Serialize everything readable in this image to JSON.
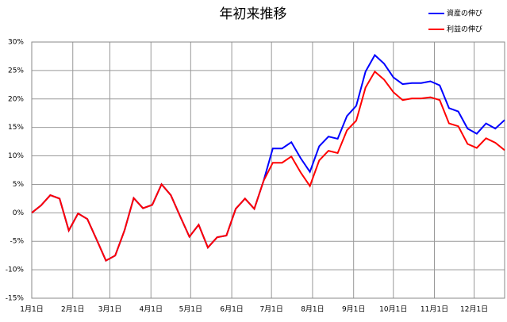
{
  "chart_data": {
    "type": "line",
    "title": "年初来推移",
    "x": [
      0,
      7,
      14,
      21,
      28,
      35,
      42,
      49,
      56,
      63,
      70,
      77,
      84,
      91,
      98,
      105,
      112,
      119,
      126,
      133,
      140,
      147,
      154,
      161,
      168,
      175,
      182,
      189,
      196,
      203,
      210,
      217,
      224,
      231,
      238,
      245,
      252,
      259,
      266,
      273,
      280,
      287,
      294,
      301,
      308,
      315,
      322,
      329,
      336,
      343,
      350,
      357
    ],
    "series": [
      {
        "name": "資産の伸び",
        "color": "#0000ff",
        "values": [
          0,
          1.3,
          3.1,
          2.5,
          -3.1,
          -0.1,
          -1.1,
          -4.7,
          -8.4,
          -7.5,
          -3.1,
          2.6,
          0.8,
          1.4,
          5.0,
          3.1,
          -0.6,
          -4.2,
          -2.1,
          -6.1,
          -4.3,
          -4.0,
          0.7,
          2.5,
          0.7,
          5.6,
          11.3,
          11.3,
          12.4,
          9.6,
          7.2,
          11.7,
          13.4,
          13.0,
          17.0,
          18.8,
          24.8,
          27.7,
          26.2,
          23.8,
          22.6,
          22.8,
          22.8,
          23.1,
          22.4,
          18.4,
          17.8,
          14.8,
          13.9,
          15.7,
          14.8,
          16.3
        ]
      },
      {
        "name": "利益の伸び",
        "color": "#ff0000",
        "values": [
          0,
          1.3,
          3.1,
          2.5,
          -3.1,
          -0.1,
          -1.1,
          -4.7,
          -8.4,
          -7.5,
          -3.1,
          2.6,
          0.8,
          1.4,
          5.0,
          3.1,
          -0.6,
          -4.2,
          -2.1,
          -6.1,
          -4.3,
          -4.0,
          0.7,
          2.5,
          0.7,
          5.6,
          8.8,
          8.8,
          9.9,
          7.1,
          4.7,
          9.2,
          10.9,
          10.5,
          14.5,
          16.2,
          22.0,
          24.8,
          23.4,
          21.2,
          19.8,
          20.1,
          20.1,
          20.3,
          19.8,
          15.7,
          15.2,
          12.1,
          11.4,
          13.1,
          12.3,
          11.0
        ]
      }
    ],
    "xlim": [
      0,
      357
    ],
    "xticks": [
      {
        "value": 0,
        "label": "1月1日"
      },
      {
        "value": 31,
        "label": "2月1日"
      },
      {
        "value": 59,
        "label": "3月1日"
      },
      {
        "value": 90,
        "label": "4月1日"
      },
      {
        "value": 120,
        "label": "5月1日"
      },
      {
        "value": 151,
        "label": "6月1日"
      },
      {
        "value": 181,
        "label": "7月1日"
      },
      {
        "value": 212,
        "label": "8月1日"
      },
      {
        "value": 243,
        "label": "9月1日"
      },
      {
        "value": 273,
        "label": "10月1日"
      },
      {
        "value": 304,
        "label": "11月1日"
      },
      {
        "value": 334,
        "label": "12月1日"
      }
    ],
    "ylim": [
      -15,
      30
    ],
    "yticks": [
      {
        "value": -15,
        "label": "-15%"
      },
      {
        "value": -10,
        "label": "-10%"
      },
      {
        "value": -5,
        "label": "-5%"
      },
      {
        "value": 0,
        "label": "0%"
      },
      {
        "value": 5,
        "label": "5%"
      },
      {
        "value": 10,
        "label": "10%"
      },
      {
        "value": 15,
        "label": "15%"
      },
      {
        "value": 20,
        "label": "20%"
      },
      {
        "value": 25,
        "label": "25%"
      },
      {
        "value": 30,
        "label": "30%"
      }
    ],
    "grid": true
  }
}
